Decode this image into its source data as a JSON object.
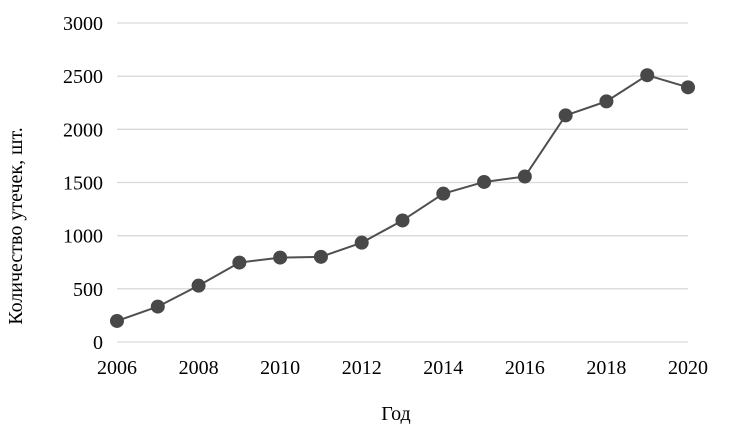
{
  "chart_data": {
    "type": "line",
    "title": "",
    "xlabel": "Год",
    "ylabel": "Количество утечек, шт.",
    "x": [
      2006,
      2007,
      2008,
      2009,
      2010,
      2011,
      2012,
      2013,
      2014,
      2015,
      2016,
      2017,
      2018,
      2019,
      2020
    ],
    "series": [
      {
        "name": "Количество утечек, шт.",
        "values": [
          198,
          333,
          530,
          747,
          794,
          801,
          934,
          1143,
          1395,
          1505,
          1556,
          2131,
          2263,
          2509,
          2395
        ]
      }
    ],
    "ylim": [
      0,
      3000
    ],
    "y_ticks": [
      0,
      500,
      1000,
      1500,
      2000,
      2500,
      3000
    ],
    "x_tick_labels": [
      "2006",
      "2008",
      "2010",
      "2012",
      "2014",
      "2016",
      "2018",
      "2020"
    ],
    "grid": "horizontal",
    "legend": "none",
    "marker": "circle",
    "colors": {
      "line": "#4f4f4f",
      "marker": "#484848",
      "gridline": "#d9d9d9",
      "text": "#000000",
      "background": "#ffffff"
    }
  }
}
